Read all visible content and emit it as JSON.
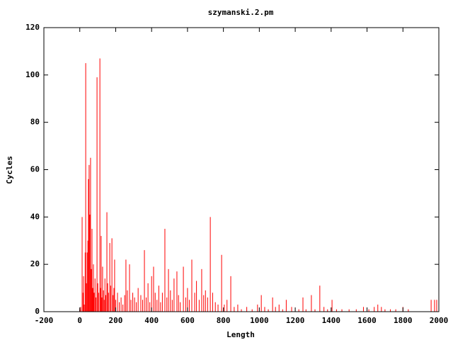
{
  "chart_data": {
    "type": "impulse",
    "title": "szymanski.2.pm",
    "x_label": "Length",
    "y_label": "Cycles",
    "color": "#ff0000",
    "xlim": [
      -200,
      2000
    ],
    "xticks": [
      -200,
      0,
      200,
      400,
      600,
      800,
      1000,
      1200,
      1400,
      1600,
      1800,
      2000
    ],
    "ylim": [
      0,
      120
    ],
    "yticks": [
      0,
      20,
      40,
      60,
      80,
      100,
      120
    ],
    "x": [
      0,
      5,
      13,
      18,
      21,
      25,
      30,
      33,
      37,
      41,
      45,
      48,
      52,
      56,
      60,
      64,
      68,
      72,
      76,
      80,
      85,
      90,
      96,
      100,
      105,
      112,
      116,
      119,
      123,
      127,
      132,
      136,
      140,
      145,
      151,
      155,
      160,
      167,
      172,
      179,
      185,
      190,
      194,
      200,
      210,
      220,
      230,
      240,
      250,
      257,
      265,
      277,
      285,
      295,
      305,
      315,
      325,
      340,
      350,
      360,
      370,
      380,
      390,
      400,
      411,
      420,
      430,
      440,
      450,
      460,
      474,
      485,
      494,
      505,
      515,
      525,
      541,
      550,
      560,
      577,
      590,
      600,
      610,
      624,
      640,
      650,
      665,
      679,
      690,
      700,
      712,
      727,
      740,
      755,
      770,
      790,
      805,
      820,
      841,
      860,
      880,
      900,
      930,
      960,
      990,
      1011,
      1030,
      1050,
      1074,
      1090,
      1110,
      1130,
      1150,
      1180,
      1220,
      1243,
      1260,
      1290,
      1310,
      1337,
      1360,
      1380,
      1405,
      1430,
      1460,
      1500,
      1540,
      1580,
      1610,
      1640,
      1660,
      1680,
      1700,
      1730,
      1760,
      1800,
      1830,
      1957,
      1976,
      1988
    ],
    "values": [
      1,
      2,
      40,
      8,
      15,
      3,
      25,
      105,
      12,
      25,
      30,
      56,
      62,
      41,
      65,
      18,
      35,
      10,
      20,
      8,
      14,
      6,
      99,
      12,
      8,
      107,
      10,
      32,
      6,
      19,
      9,
      5,
      14,
      7,
      42,
      12,
      8,
      29,
      11,
      31,
      7,
      10,
      22,
      5,
      8,
      4,
      6,
      3,
      7,
      22,
      9,
      20,
      5,
      8,
      6,
      4,
      10,
      7,
      5,
      26,
      6,
      12,
      4,
      15,
      19,
      8,
      5,
      11,
      4,
      8,
      35,
      6,
      18,
      9,
      5,
      14,
      17,
      7,
      4,
      19,
      6,
      10,
      5,
      22,
      8,
      13,
      5,
      18,
      7,
      9,
      6,
      40,
      8,
      4,
      3,
      24,
      3,
      5,
      15,
      2,
      3,
      1,
      2,
      1,
      3,
      7,
      2,
      1,
      6,
      2,
      3,
      1,
      5,
      2,
      1,
      6,
      1,
      7,
      1,
      11,
      2,
      1,
      5,
      1,
      1,
      1,
      1,
      2,
      1,
      2,
      3,
      2,
      1,
      1,
      1,
      2,
      1,
      5,
      5,
      5
    ]
  }
}
